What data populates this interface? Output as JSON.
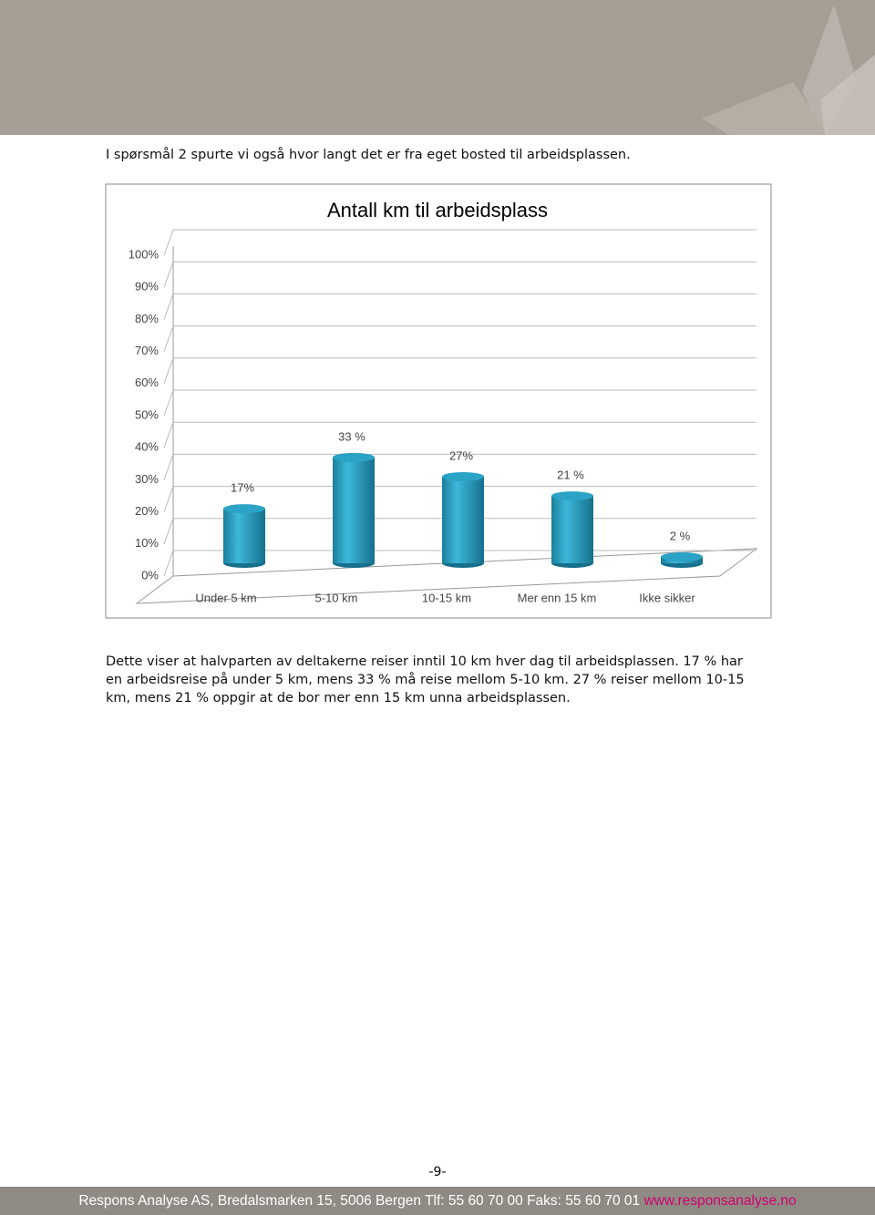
{
  "intro": "I spørsmål 2 spurte vi også hvor langt det er fra eget bosted til arbeidsplassen.",
  "chart_data": {
    "type": "bar",
    "title": "Antall km til arbeidsplass",
    "categories": [
      "Under 5 km",
      "5-10 km",
      "10-15 km",
      "Mer enn 15 km",
      "Ikke sikker"
    ],
    "values": [
      17,
      33,
      27,
      21,
      2
    ],
    "value_labels": [
      "17%",
      "33 %",
      "27%",
      "21 %",
      "2 %"
    ],
    "color": "#2aa3c6",
    "ylim": [
      0,
      100
    ],
    "yticks": [
      {
        "value": 0,
        "label": "0%"
      },
      {
        "value": 10,
        "label": "10%"
      },
      {
        "value": 20,
        "label": "20%"
      },
      {
        "value": 30,
        "label": "30%"
      },
      {
        "value": 40,
        "label": "40%"
      },
      {
        "value": 50,
        "label": "50%"
      },
      {
        "value": 60,
        "label": "60%"
      },
      {
        "value": 70,
        "label": "70%"
      },
      {
        "value": 80,
        "label": "80%"
      },
      {
        "value": 90,
        "label": "90%"
      },
      {
        "value": 100,
        "label": "100%"
      }
    ],
    "grid": true
  },
  "body": "Dette viser at  halvparten av deltakerne reiser inntil 10 km hver dag til arbeidsplassen. 17 % har en arbeidsreise på under 5 km, mens 33 % må reise mellom 5-10 km. 27 % reiser mellom 10-15 km, mens 21 % oppgir at de bor mer enn 15 km unna arbeidsplassen.",
  "page_number": "-9-",
  "footer": {
    "text": "Respons Analyse AS, Bredalsmarken 15, 5006 Bergen Tlf: 55 60 70 00 Faks: 55 60 70 01",
    "url": "www.responsanalyse.no"
  }
}
